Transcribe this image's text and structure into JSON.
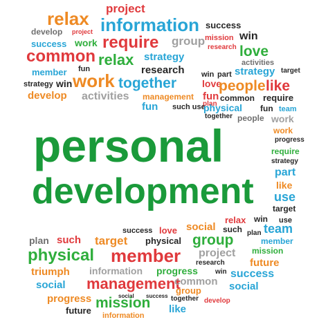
{
  "title": {
    "line1": "personal",
    "line2": "development"
  },
  "colors": {
    "title_green": "#1a9a3a",
    "red": "#e0393c",
    "orange": "#ee8a24",
    "blue": "#28a5d6",
    "green": "#2fae3c",
    "gray": "#6f6f6f",
    "dark": "#262626"
  },
  "words": [
    "project",
    "relax",
    "information",
    "success",
    "develop",
    "project",
    "require",
    "group",
    "mission",
    "win",
    "success",
    "work",
    "research",
    "common",
    "relax",
    "strategy",
    "love",
    "activities",
    "member",
    "fun",
    "research",
    "win",
    "part",
    "strategy",
    "target",
    "strategy",
    "win",
    "work",
    "together",
    "love",
    "people",
    "like",
    "develop",
    "activities",
    "management",
    "fun",
    "plan",
    "require",
    "fun",
    "such use",
    "common",
    "fun",
    "team",
    "physical",
    "together",
    "people",
    "work",
    "progress",
    "require",
    "strategy",
    "part",
    "like",
    "use",
    "target",
    "relax",
    "win",
    "use",
    "success",
    "love",
    "social",
    "such",
    "plan",
    "team",
    "plan",
    "such",
    "target",
    "physical",
    "group",
    "member",
    "mission",
    "physical",
    "member",
    "project",
    "research",
    "future",
    "triumph",
    "information",
    "progress",
    "win",
    "success",
    "social",
    "management",
    "common",
    "social",
    "progress",
    "social",
    "success",
    "group",
    "together",
    "develop",
    "future",
    "mission",
    "like",
    "information"
  ]
}
